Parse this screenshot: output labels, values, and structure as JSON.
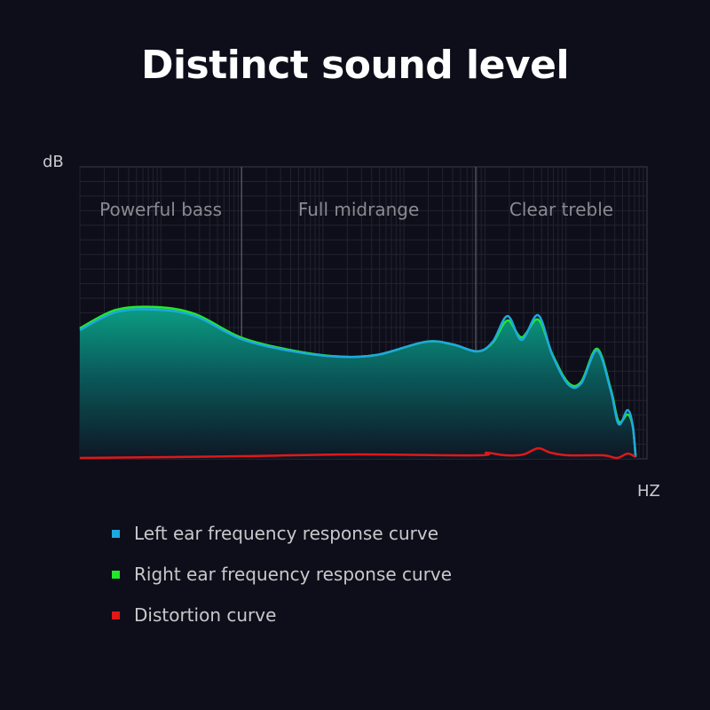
{
  "title": "Distinct sound level",
  "chart_data": {
    "type": "area",
    "ylabel": "dB",
    "xlabel": "HZ",
    "xlim": [
      0,
      100
    ],
    "ylim": [
      0,
      100
    ],
    "grid": true,
    "legend_placement": "bottom",
    "regions": [
      {
        "label": "Powerful bass",
        "from": 0,
        "to": 28.5
      },
      {
        "label": "Full midrange",
        "from": 28.5,
        "to": 69.8
      },
      {
        "label": "Clear treble",
        "from": 69.8,
        "to": 100
      }
    ],
    "series": [
      {
        "name": "Left ear frequency response curve",
        "color": "#1ea8e0",
        "x": [
          0,
          6.3,
          13.3,
          20.3,
          28.5,
          37.6,
          45.4,
          52.4,
          61.0,
          65.7,
          70.1,
          72.8,
          75.4,
          77.9,
          80.8,
          83.3,
          86.1,
          88.4,
          91.2,
          93.6,
          95.0,
          96.6,
          97.5,
          98.0
        ],
        "y": [
          44.1,
          50.2,
          51.1,
          48.9,
          41.0,
          36.8,
          35.0,
          35.6,
          40.1,
          39.2,
          36.8,
          40.1,
          48.9,
          40.7,
          49.2,
          35.6,
          25.5,
          25.8,
          37.1,
          23.4,
          11.9,
          16.7,
          11.2,
          0.6
        ]
      },
      {
        "name": "Right ear frequency response curve",
        "color": "#22e82a",
        "x": [
          0,
          6.3,
          13.3,
          20.3,
          28.5,
          37.6,
          45.4,
          52.4,
          61.0,
          65.7,
          70.1,
          72.8,
          75.4,
          77.9,
          80.8,
          83.3,
          86.1,
          88.4,
          91.2,
          93.6,
          95.0,
          96.6,
          97.5,
          98.0
        ],
        "y": [
          44.7,
          51.0,
          52.0,
          49.6,
          41.5,
          37.1,
          35.1,
          35.6,
          40.1,
          39.2,
          36.8,
          39.8,
          47.4,
          41.6,
          47.7,
          35.9,
          26.1,
          26.4,
          37.7,
          24.0,
          12.8,
          15.2,
          11.0,
          0.6
        ]
      },
      {
        "name": "Distortion curve",
        "color": "#e01818",
        "x": [
          0,
          28.5,
          48,
          70.1,
          71.7,
          75.1,
          78.2,
          80.8,
          83,
          86.1,
          92.3,
          94.7,
          96.6,
          98
        ],
        "y": [
          0.3,
          0.9,
          1.5,
          1.2,
          2.1,
          1.2,
          1.5,
          3.6,
          2.1,
          1.2,
          1.2,
          0.3,
          1.8,
          0.6
        ]
      }
    ]
  }
}
